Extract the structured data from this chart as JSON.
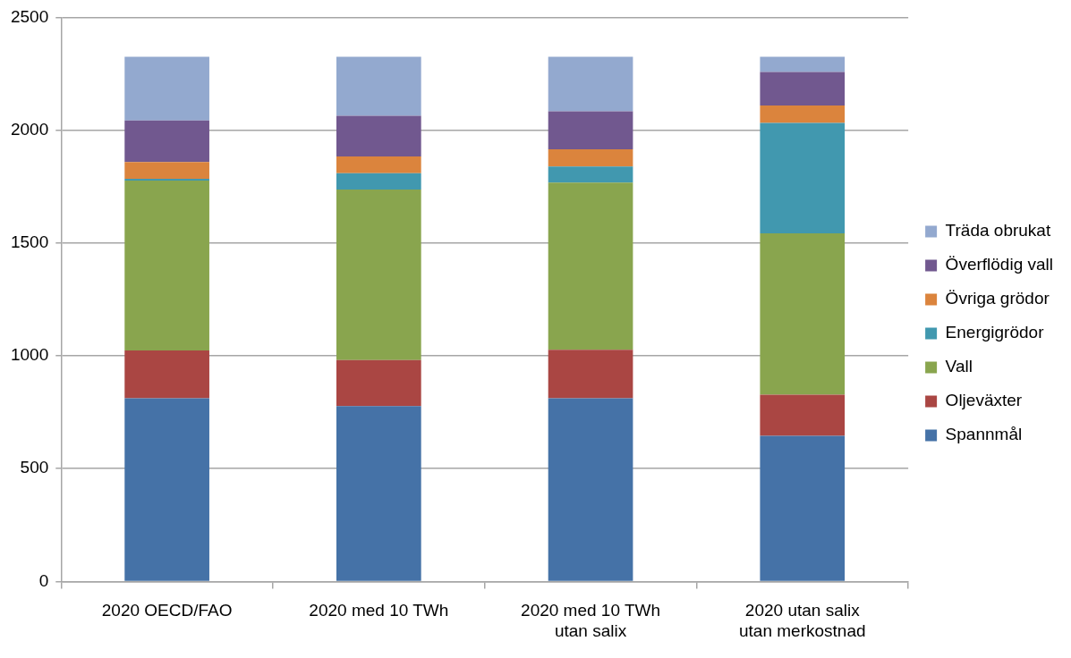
{
  "chart_data": {
    "type": "bar",
    "stacked": true,
    "categories": [
      "2020 OECD/FAO",
      "2020 med 10 TWh",
      "2020 med 10 TWh\nutan salix",
      "2020 utan salix\nutan merkostnad"
    ],
    "series": [
      {
        "name": "Spannmål",
        "color": "#4572a7",
        "values": [
          812,
          777,
          812,
          645
        ]
      },
      {
        "name": "Oljeväxter",
        "color": "#aa4643",
        "values": [
          212,
          204,
          215,
          183
        ]
      },
      {
        "name": "Vall",
        "color": "#89a54e",
        "values": [
          753,
          756,
          741,
          715
        ]
      },
      {
        "name": "Energigrödor",
        "color": "#4198af",
        "values": [
          7,
          72,
          71,
          489
        ]
      },
      {
        "name": "Övriga grödor",
        "color": "#db843d",
        "values": [
          75,
          75,
          76,
          77
        ]
      },
      {
        "name": "Överflödig vall",
        "color": "#71588f",
        "values": [
          184,
          180,
          169,
          149
        ]
      },
      {
        "name": "Träda obrukat",
        "color": "#93a9cf",
        "values": [
          282,
          261,
          241,
          67
        ]
      }
    ],
    "ylim": [
      0,
      2500
    ],
    "yticks": [
      0,
      500,
      1000,
      1500,
      2000,
      2500
    ],
    "grid": "y",
    "legend": "right"
  }
}
